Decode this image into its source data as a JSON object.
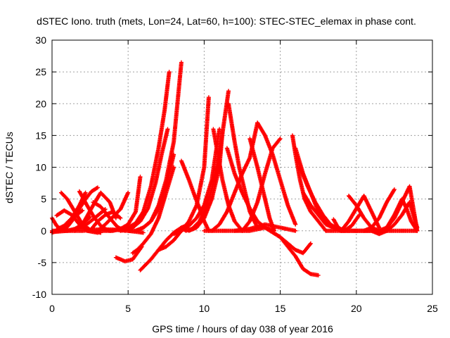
{
  "chart_data": {
    "type": "scatter",
    "title": "dSTEC Iono. truth (mets, Lon=24, Lat=60, h=100): STEC-STEC_elemax in phase cont.",
    "xlabel": "GPS time / hours of day 038 of year 2016",
    "ylabel": "dSTEC  / TECUs",
    "xlim": [
      0,
      25
    ],
    "ylim": [
      -10,
      30
    ],
    "xticks": [
      0,
      5,
      10,
      15,
      20,
      25
    ],
    "yticks": [
      -10,
      -5,
      0,
      5,
      10,
      15,
      20,
      25,
      30
    ],
    "grid": true,
    "marker": "+",
    "color": "#ff0000",
    "series": [
      {
        "x": [
          0.0,
          0.3,
          0.6,
          1.0,
          1.5,
          2.0,
          2.5
        ],
        "y": [
          2.0,
          0.8,
          0.2,
          0.0,
          0.3,
          1.0,
          2.2
        ]
      },
      {
        "x": [
          0.0,
          0.5,
          1.0,
          1.5,
          2.0
        ],
        "y": [
          -0.3,
          0.2,
          1.0,
          2.3,
          3.2
        ]
      },
      {
        "x": [
          0.3,
          0.8,
          1.3,
          1.8,
          2.2
        ],
        "y": [
          0.2,
          0.8,
          2.0,
          4.0,
          6.0
        ]
      },
      {
        "x": [
          0.6,
          1.0,
          1.5,
          2.0,
          2.6,
          3.2
        ],
        "y": [
          6.0,
          5.0,
          3.0,
          1.0,
          0.0,
          -0.3
        ]
      },
      {
        "x": [
          0.3,
          0.8,
          1.3,
          1.8,
          2.3,
          3.0
        ],
        "y": [
          2.4,
          3.2,
          2.5,
          1.0,
          0.0,
          -0.3
        ]
      },
      {
        "x": [
          0.0,
          1.0,
          2.0,
          2.8,
          3.5
        ],
        "y": [
          -0.2,
          0.0,
          0.5,
          2.0,
          3.4
        ]
      },
      {
        "x": [
          0.8,
          1.3,
          1.8,
          2.2,
          2.6,
          3.0
        ],
        "y": [
          0.0,
          1.5,
          3.5,
          5.0,
          6.2,
          6.8
        ]
      },
      {
        "x": [
          1.8,
          2.3,
          2.8,
          3.3,
          3.8
        ],
        "y": [
          6.2,
          4.0,
          2.0,
          0.5,
          0.0
        ]
      },
      {
        "x": [
          1.5,
          2.0,
          2.7,
          3.2,
          3.8,
          4.2
        ],
        "y": [
          0.0,
          1.0,
          4.0,
          6.0,
          4.5,
          2.0
        ]
      },
      {
        "x": [
          2.5,
          3.0,
          3.5,
          4.0,
          4.5
        ],
        "y": [
          0.0,
          1.5,
          2.5,
          3.0,
          2.0
        ]
      },
      {
        "x": [
          2.7,
          3.2,
          3.8,
          4.3,
          4.8
        ],
        "y": [
          4.5,
          3.8,
          2.0,
          0.6,
          0.0
        ]
      },
      {
        "x": [
          3.0,
          3.5,
          4.0,
          4.5,
          5.0
        ],
        "y": [
          0.0,
          1.0,
          2.2,
          3.4,
          6.0
        ]
      },
      {
        "x": [
          0.0,
          1.0,
          2.0,
          3.0,
          4.0,
          5.0,
          6.0
        ],
        "y": [
          0.0,
          0.0,
          0.0,
          0.2,
          0.2,
          0.0,
          -0.3
        ]
      },
      {
        "x": [
          3.0,
          4.0,
          4.5,
          5.0,
          5.5,
          5.8
        ],
        "y": [
          0.0,
          0.0,
          0.3,
          1.0,
          3.0,
          8.5
        ]
      },
      {
        "x": [
          4.2,
          4.8,
          5.3,
          5.6,
          5.9
        ],
        "y": [
          -4.2,
          -4.8,
          -4.5,
          -3.5,
          -2.5
        ]
      },
      {
        "x": [
          3.8,
          4.5,
          5.0,
          5.5,
          6.0,
          6.5,
          7.0,
          7.4,
          7.7
        ],
        "y": [
          0.0,
          0.2,
          0.5,
          1.2,
          3.0,
          7.0,
          13.0,
          19.0,
          25.0
        ]
      },
      {
        "x": [
          4.5,
          5.2,
          5.8,
          6.3,
          6.8,
          7.2,
          7.6
        ],
        "y": [
          0.0,
          0.3,
          1.5,
          3.5,
          7.5,
          12.0,
          16.0
        ]
      },
      {
        "x": [
          5.5,
          6.0,
          6.5,
          7.0,
          7.5,
          8.0,
          8.5
        ],
        "y": [
          0.0,
          0.5,
          1.5,
          4.0,
          8.0,
          14.0,
          26.5
        ]
      },
      {
        "x": [
          5.0,
          5.5,
          6.0,
          6.5,
          7.0,
          7.5,
          8.0
        ],
        "y": [
          0.0,
          0.0,
          0.5,
          1.5,
          3.5,
          7.0,
          12.0
        ]
      },
      {
        "x": [
          5.3,
          5.6,
          6.0,
          6.5,
          7.0,
          7.5,
          8.0
        ],
        "y": [
          -3.5,
          -3.0,
          -2.0,
          -0.5,
          2.0,
          6.0,
          10.0
        ]
      },
      {
        "x": [
          5.8,
          6.5,
          7.0,
          7.5,
          8.0,
          8.5,
          9.0
        ],
        "y": [
          -6.2,
          -4.5,
          -3.0,
          -1.5,
          -0.3,
          0.5,
          1.0
        ]
      },
      {
        "x": [
          7.0,
          7.5,
          8.0,
          8.5,
          9.0,
          9.5,
          10.0,
          10.3
        ],
        "y": [
          -3.0,
          -2.5,
          -1.5,
          0.0,
          1.5,
          4.0,
          10.0,
          21.0
        ]
      },
      {
        "x": [
          8.0,
          8.5,
          9.0,
          9.5,
          10.0,
          10.5,
          11.0
        ],
        "y": [
          -0.5,
          0.0,
          0.8,
          2.0,
          4.0,
          8.0,
          16.0
        ]
      },
      {
        "x": [
          8.5,
          8.8,
          9.2,
          9.7,
          10.0,
          10.5,
          11.0,
          11.6
        ],
        "y": [
          0.5,
          0.0,
          0.3,
          1.5,
          3.0,
          6.5,
          12.0,
          22.0
        ]
      },
      {
        "x": [
          8.5,
          9.0,
          9.3,
          9.7,
          10.0,
          10.3
        ],
        "y": [
          11.0,
          8.0,
          6.0,
          3.5,
          1.5,
          0.0
        ]
      },
      {
        "x": [
          9.0,
          9.5,
          10.0,
          10.5,
          11.0,
          11.2
        ],
        "y": [
          0.0,
          0.5,
          2.0,
          5.0,
          10.0,
          15.5
        ]
      },
      {
        "x": [
          10.6,
          10.9,
          11.2,
          11.6,
          12.0,
          12.5
        ],
        "y": [
          16.0,
          12.0,
          8.0,
          4.0,
          1.5,
          0.0
        ]
      },
      {
        "x": [
          10.5,
          11.0,
          11.5,
          12.0,
          12.5,
          13.0,
          13.5
        ],
        "y": [
          0.0,
          1.0,
          3.0,
          6.0,
          9.0,
          11.5,
          17.0
        ]
      },
      {
        "x": [
          11.5,
          12.0,
          12.5,
          13.0,
          13.5,
          14.0,
          14.5
        ],
        "y": [
          13.0,
          9.0,
          6.0,
          3.5,
          1.5,
          0.5,
          0.0
        ]
      },
      {
        "x": [
          11.6,
          12.0,
          12.3,
          12.7,
          13.0,
          13.5
        ],
        "y": [
          20.0,
          14.0,
          10.0,
          6.0,
          3.0,
          0.5
        ]
      },
      {
        "x": [
          12.5,
          13.0,
          13.5,
          14.0,
          14.5,
          15.0
        ],
        "y": [
          0.0,
          1.5,
          4.5,
          9.0,
          13.0,
          14.5
        ]
      },
      {
        "x": [
          13.0,
          13.5,
          14.0,
          14.3,
          14.6
        ],
        "y": [
          14.5,
          10.0,
          5.0,
          2.0,
          0.0
        ]
      },
      {
        "x": [
          13.5,
          14.0,
          14.5,
          15.0,
          15.5,
          16.0
        ],
        "y": [
          17.0,
          15.0,
          12.0,
          8.0,
          4.0,
          1.0
        ]
      },
      {
        "x": [
          10.0,
          11.0,
          12.0,
          13.0,
          14.0,
          15.0,
          16.0
        ],
        "y": [
          0.0,
          0.0,
          0.0,
          0.3,
          1.0,
          0.5,
          0.0
        ]
      },
      {
        "x": [
          12.0,
          13.0,
          14.0,
          15.0,
          15.5,
          16.0,
          16.5,
          17.0,
          17.5
        ],
        "y": [
          0.0,
          0.0,
          0.5,
          -1.0,
          -2.5,
          -4.0,
          -6.0,
          -6.8,
          -7.0
        ]
      },
      {
        "x": [
          14.0,
          15.0,
          15.5,
          16.0,
          16.5,
          17.0
        ],
        "y": [
          0.5,
          -1.0,
          -2.0,
          -3.0,
          -3.5,
          -2.0
        ]
      },
      {
        "x": [
          15.8,
          16.0,
          16.3,
          16.6,
          17.0,
          17.5,
          18.0
        ],
        "y": [
          15.0,
          12.0,
          8.0,
          5.0,
          3.0,
          1.5,
          0.0
        ]
      },
      {
        "x": [
          16.0,
          16.5,
          17.0,
          17.5,
          18.0,
          18.5,
          19.0
        ],
        "y": [
          13.0,
          9.0,
          6.0,
          3.0,
          1.5,
          0.5,
          0.0
        ]
      },
      {
        "x": [
          16.3,
          16.8,
          17.3,
          17.8,
          18.3,
          18.8,
          19.5
        ],
        "y": [
          10.0,
          7.0,
          4.5,
          2.5,
          1.0,
          0.3,
          0.0
        ]
      },
      {
        "x": [
          16.5,
          17.0,
          17.5,
          18.0,
          18.5,
          19.0,
          20.0
        ],
        "y": [
          6.0,
          4.0,
          2.5,
          1.0,
          0.5,
          0.0,
          0.0
        ]
      },
      {
        "x": [
          18.5,
          18.8,
          19.2,
          19.7,
          20.2
        ],
        "y": [
          1.8,
          0.5,
          0.0,
          0.8,
          2.5
        ]
      },
      {
        "x": [
          19.0,
          19.5,
          20.0,
          20.5,
          21.0,
          21.5
        ],
        "y": [
          0.0,
          1.5,
          3.5,
          5.5,
          3.0,
          0.5
        ]
      },
      {
        "x": [
          19.5,
          20.0,
          20.5,
          21.0,
          21.5,
          22.0
        ],
        "y": [
          5.5,
          4.0,
          2.0,
          0.5,
          0.0,
          0.0
        ]
      },
      {
        "x": [
          20.0,
          20.5,
          21.0,
          21.5,
          22.0,
          22.5
        ],
        "y": [
          0.0,
          0.0,
          0.5,
          2.0,
          4.5,
          6.5
        ]
      },
      {
        "x": [
          20.5,
          21.0,
          21.5,
          22.0,
          22.5,
          23.0,
          23.5,
          24.0
        ],
        "y": [
          0.0,
          0.0,
          -0.5,
          0.0,
          1.0,
          2.5,
          4.5,
          0.5
        ]
      },
      {
        "x": [
          21.5,
          22.0,
          22.5,
          23.0,
          23.5,
          24.0
        ],
        "y": [
          0.0,
          0.5,
          2.0,
          4.5,
          7.0,
          0.0
        ]
      },
      {
        "x": [
          22.0,
          22.5,
          23.0,
          23.3,
          23.6,
          24.0
        ],
        "y": [
          0.5,
          2.5,
          5.0,
          3.5,
          1.5,
          0.0
        ]
      },
      {
        "x": [
          18.0,
          19.0,
          20.0,
          21.0,
          22.0,
          23.0,
          24.0
        ],
        "y": [
          0.0,
          0.0,
          0.0,
          0.0,
          0.0,
          0.0,
          0.0
        ]
      }
    ]
  }
}
